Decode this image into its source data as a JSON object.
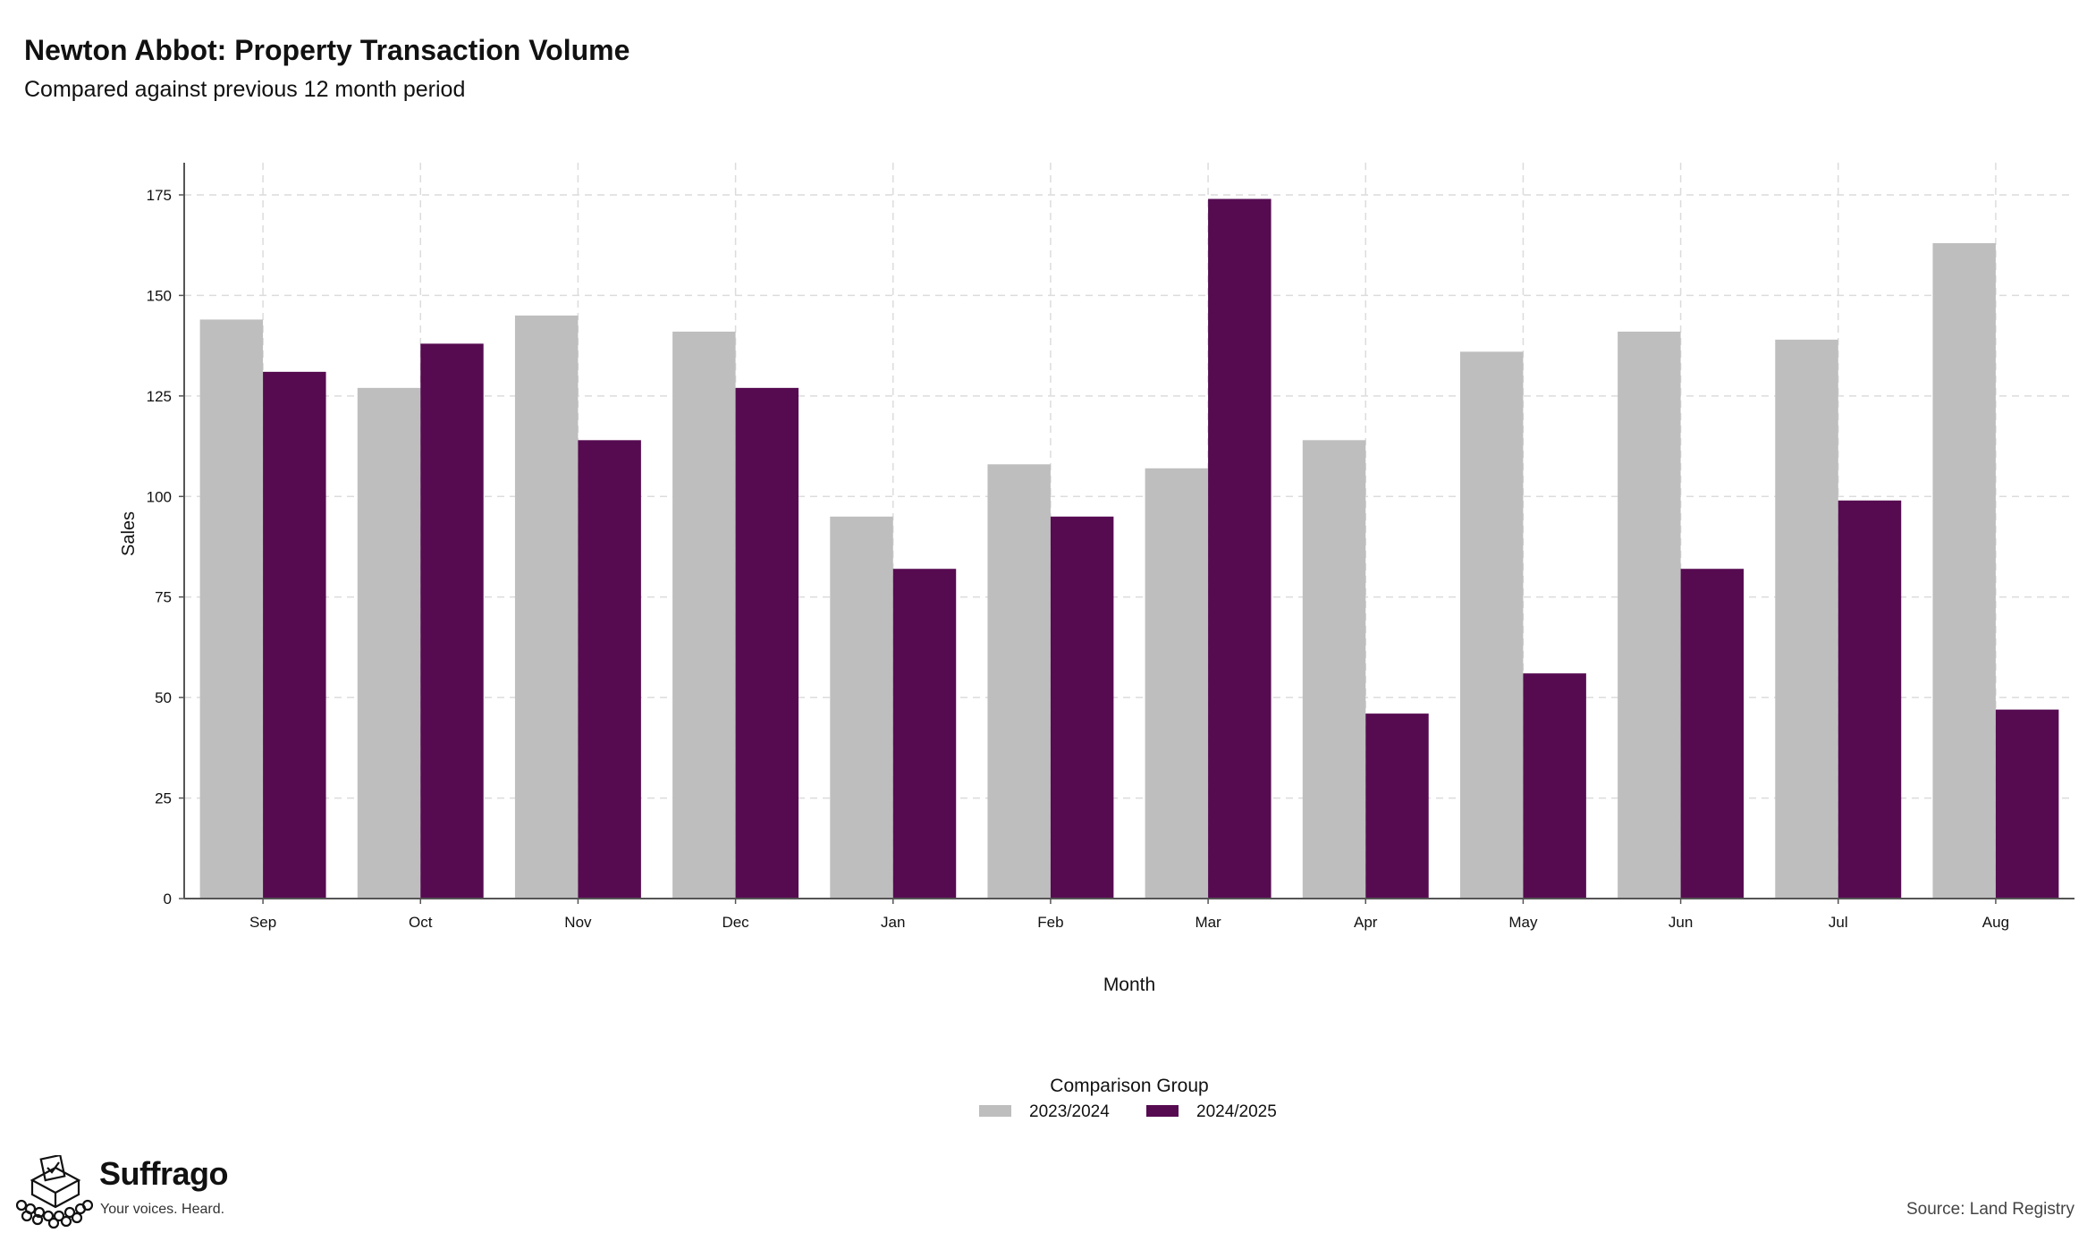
{
  "header": {
    "title": "Newton Abbot: Property Transaction Volume",
    "subtitle": "Compared against previous 12 month period"
  },
  "chart_data": {
    "type": "bar",
    "title": "Newton Abbot: Property Transaction Volume",
    "subtitle": "Compared against previous 12 month period",
    "xlabel": "Month",
    "ylabel": "Sales",
    "categories": [
      "Sep",
      "Oct",
      "Nov",
      "Dec",
      "Jan",
      "Feb",
      "Mar",
      "Apr",
      "May",
      "Jun",
      "Jul",
      "Aug"
    ],
    "series": [
      {
        "name": "2023/2024",
        "color": "#bebebe",
        "values": [
          144,
          127,
          145,
          141,
          95,
          108,
          107,
          114,
          136,
          141,
          139,
          163
        ]
      },
      {
        "name": "2024/2025",
        "color": "#560b51",
        "values": [
          131,
          138,
          114,
          127,
          82,
          95,
          174,
          46,
          56,
          82,
          99,
          47
        ]
      }
    ],
    "ylim": [
      0,
      183
    ],
    "yticks": [
      0,
      25,
      50,
      75,
      100,
      125,
      150,
      175
    ],
    "grid": true,
    "legend": {
      "title": "Comparison Group",
      "position": "bottom"
    }
  },
  "branding": {
    "name": "Suffrago",
    "tagline": "Your voices. Heard.",
    "icon": "ballot-box-icon"
  },
  "source": "Source: Land Registry"
}
